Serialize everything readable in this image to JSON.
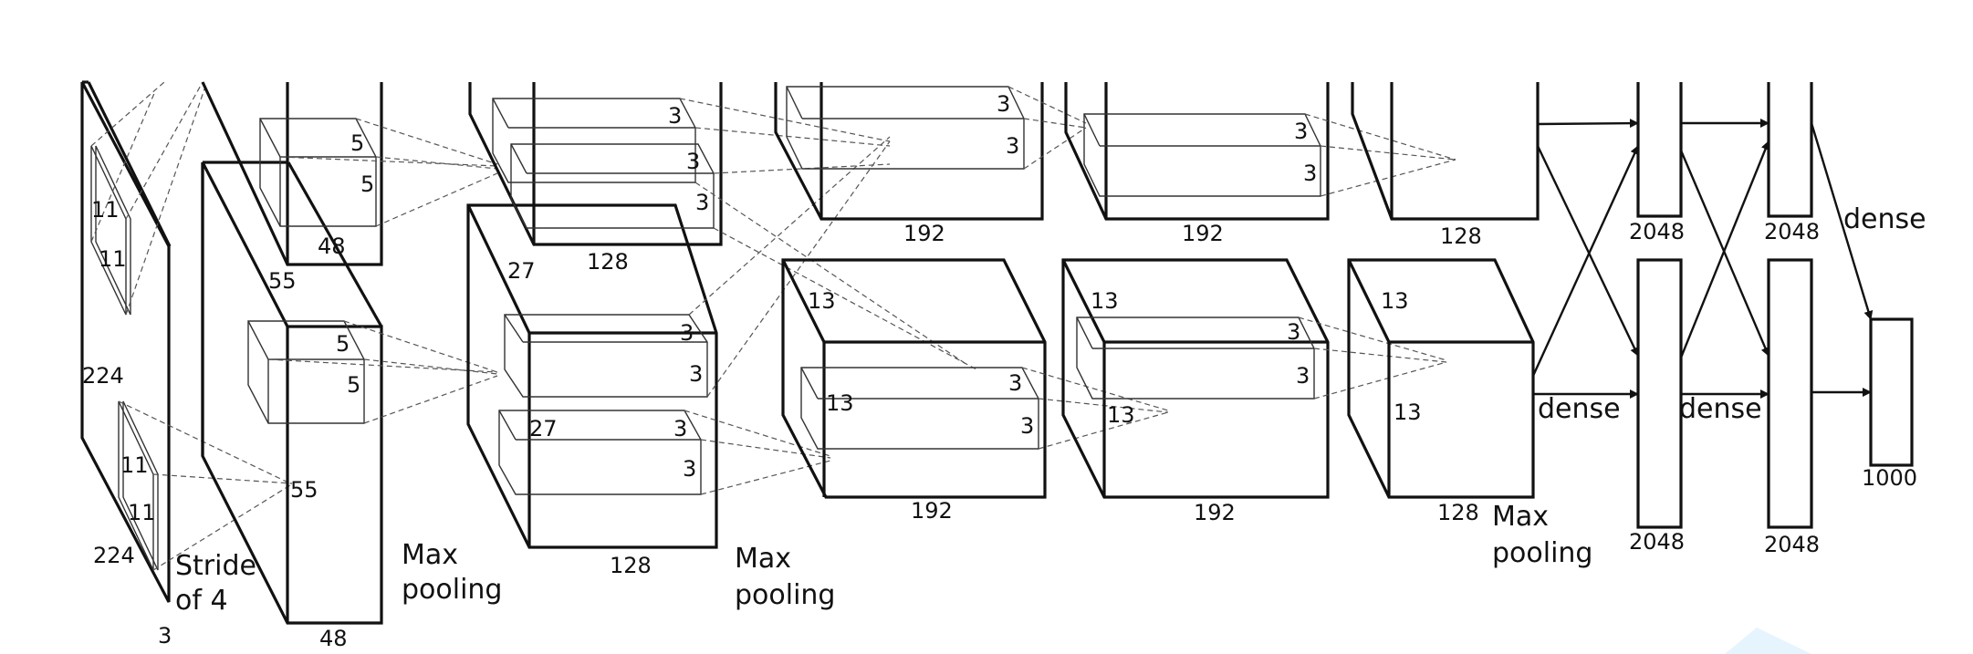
{
  "input": {
    "size_a": "224",
    "size_b": "224",
    "channels": "3",
    "kernel_a": "11",
    "kernel_b": "11",
    "kernel_c": "11",
    "kernel_d": "11",
    "stride": "Stride\nof 4"
  },
  "conv1": {
    "size": "55",
    "size_b": "55",
    "depth_top": "48",
    "depth_bottom": "48",
    "k1": "5",
    "k2": "5",
    "k3": "5",
    "k4": "5",
    "pool": "Max\npooling"
  },
  "conv2": {
    "size": "27",
    "size_b": "27",
    "depth_top": "128",
    "depth_bottom": "128",
    "k": [
      "3",
      "3",
      "3",
      "3",
      "3",
      "3",
      "3"
    ],
    "pool": "Max\npooling"
  },
  "conv3": {
    "size_a": "13",
    "size_b": "13",
    "depth_top": "192",
    "depth_bottom": "192",
    "k": [
      "3",
      "3",
      "3",
      "3"
    ]
  },
  "conv4": {
    "size_a": "13",
    "size_b": "13",
    "depth_top": "192",
    "depth_bottom": "192",
    "k": [
      "3",
      "3",
      "3",
      "3"
    ]
  },
  "conv5": {
    "size_a": "13",
    "size_b": "13",
    "depth_top": "128",
    "depth_bottom": "128",
    "pool": "Max\npooling"
  },
  "dense": {
    "fc6_top": "2048",
    "fc6_bottom": "2048",
    "fc7_top": "2048",
    "fc7_bottom": "2048",
    "label_1": "dense",
    "label_2": "dense",
    "label_3": "dense",
    "output": "1000"
  },
  "accent_color": "#e6f4fd"
}
